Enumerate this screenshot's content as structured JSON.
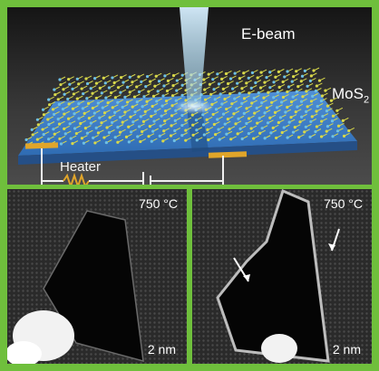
{
  "top_panel": {
    "ebeam_label": "E-beam",
    "material_label_main": "MoS",
    "material_label_sub": "2",
    "heater_label": "Heater"
  },
  "bottom_left": {
    "temperature": "750 °C",
    "scale_bar": "2 nm"
  },
  "bottom_right": {
    "temperature": "750 °C",
    "scale_bar": "2 nm"
  },
  "colors": {
    "border": "#6fbf3c",
    "substrate": "#3f7fc8",
    "electrode": "#e0a52a",
    "lattice_yellow": "#d8d84a",
    "lattice_blue": "#6ec0e6"
  }
}
